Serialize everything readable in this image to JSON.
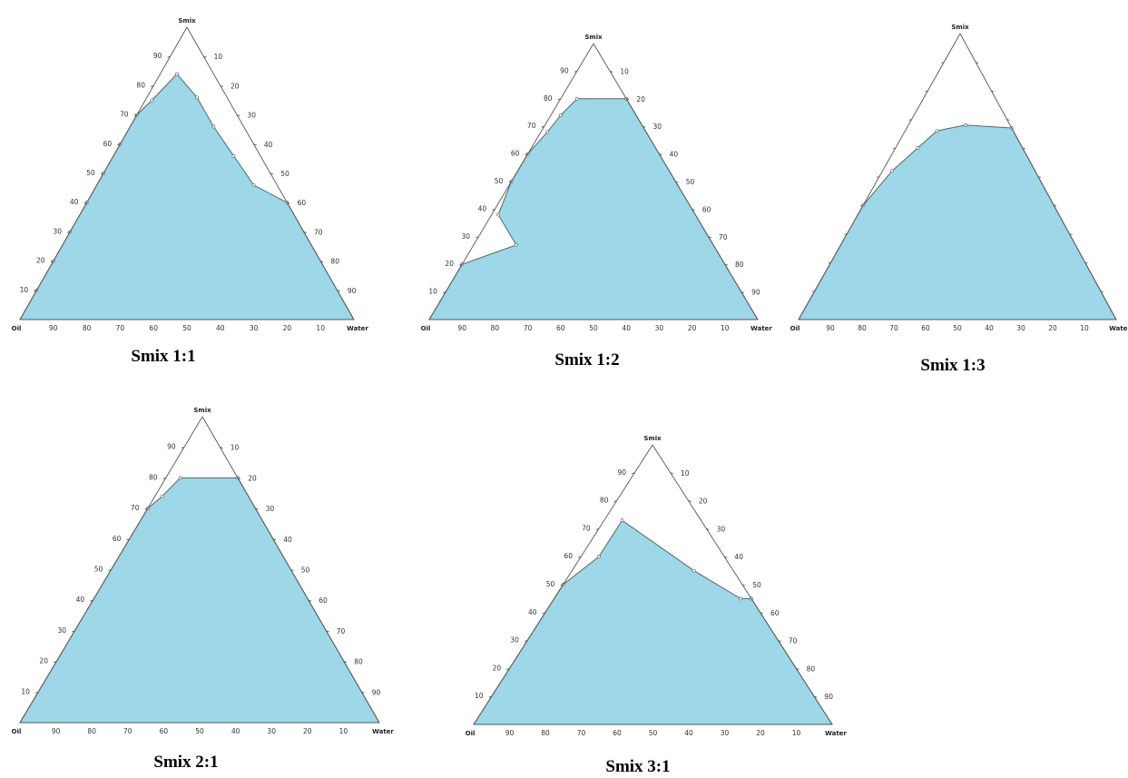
{
  "colors": {
    "region_fill": "#9dd7e8",
    "region_stroke": "#4a6b73",
    "edge": "#555555"
  },
  "chart_data": [
    {
      "type": "area",
      "chart_kind": "ternary phase diagram",
      "caption": "Smix 1:1",
      "vertices": {
        "top": "Smix",
        "bottom_left": "Oil",
        "bottom_right": "Water"
      },
      "left_edge_ticks": [
        "10",
        "20",
        "30",
        "40",
        "50",
        "60",
        "70",
        "80",
        "90"
      ],
      "right_edge_ticks": [
        "10",
        "20",
        "30",
        "40",
        "50",
        "60",
        "70",
        "80",
        "90"
      ],
      "bottom_edge_ticks": [
        "90",
        "80",
        "70",
        "60",
        "50",
        "40",
        "30",
        "20",
        "10"
      ],
      "grid": false,
      "region_points": [
        {
          "smix": 100,
          "oil": 0,
          "water": 0,
          "skip": true
        },
        {
          "smix": 0,
          "oil": 100,
          "water": 0
        },
        {
          "smix": 10,
          "oil": 90,
          "water": 0
        },
        {
          "smix": 20,
          "oil": 80,
          "water": 0
        },
        {
          "smix": 30,
          "oil": 70,
          "water": 0
        },
        {
          "smix": 40,
          "oil": 60,
          "water": 0
        },
        {
          "smix": 50,
          "oil": 50,
          "water": 0
        },
        {
          "smix": 60,
          "oil": 40,
          "water": 0
        },
        {
          "smix": 70,
          "oil": 30,
          "water": 0
        },
        {
          "smix": 75,
          "oil": 23,
          "water": 2
        },
        {
          "smix": 84,
          "oil": 11,
          "water": 5
        },
        {
          "smix": 76,
          "oil": 9,
          "water": 15
        },
        {
          "smix": 66,
          "oil": 9,
          "water": 25
        },
        {
          "smix": 56,
          "oil": 8,
          "water": 36
        },
        {
          "smix": 46,
          "oil": 7,
          "water": 47
        },
        {
          "smix": 40,
          "oil": 0,
          "water": 60
        },
        {
          "smix": 0,
          "oil": 0,
          "water": 100
        }
      ]
    },
    {
      "type": "area",
      "chart_kind": "ternary phase diagram",
      "caption": "Smix 1:2",
      "vertices": {
        "top": "Smix",
        "bottom_left": "Oil",
        "bottom_right": "Water"
      },
      "left_edge_ticks": [
        "10",
        "20",
        "30",
        "40",
        "50",
        "60",
        "70",
        "80",
        "90"
      ],
      "right_edge_ticks": [
        "10",
        "20",
        "30",
        "40",
        "50",
        "60",
        "70",
        "80",
        "90"
      ],
      "bottom_edge_ticks": [
        "90",
        "80",
        "70",
        "60",
        "50",
        "40",
        "30",
        "20",
        "10"
      ],
      "grid": false,
      "region_points": [
        {
          "smix": 0,
          "oil": 100,
          "water": 0
        },
        {
          "smix": 20,
          "oil": 80,
          "water": 0
        },
        {
          "smix": 27,
          "oil": 60,
          "water": 13
        },
        {
          "smix": 38,
          "oil": 60,
          "water": 2
        },
        {
          "smix": 50,
          "oil": 50,
          "water": 0
        },
        {
          "smix": 60,
          "oil": 40,
          "water": 0
        },
        {
          "smix": 68,
          "oil": 30,
          "water": 2
        },
        {
          "smix": 74,
          "oil": 23,
          "water": 3
        },
        {
          "smix": 80,
          "oil": 15,
          "water": 5
        },
        {
          "smix": 80,
          "oil": 0,
          "water": 20
        },
        {
          "smix": 0,
          "oil": 0,
          "water": 100
        }
      ]
    },
    {
      "type": "area",
      "chart_kind": "ternary phase diagram",
      "caption": "Smix 1:3",
      "vertices": {
        "top": "Smix",
        "bottom_left": "Oil",
        "bottom_right": "Water"
      },
      "left_edge_ticks": [],
      "right_edge_ticks": [],
      "bottom_edge_ticks": [
        "90",
        "80",
        "70",
        "60",
        "50",
        "40",
        "30",
        "20",
        "10"
      ],
      "grid": false,
      "region_points": [
        {
          "smix": 0,
          "oil": 100,
          "water": 0
        },
        {
          "smix": 40,
          "oil": 60,
          "water": 0
        },
        {
          "smix": 52,
          "oil": 45,
          "water": 3
        },
        {
          "smix": 60,
          "oil": 33,
          "water": 7
        },
        {
          "smix": 66,
          "oil": 24,
          "water": 10
        },
        {
          "smix": 68,
          "oil": 14,
          "water": 18
        },
        {
          "smix": 67,
          "oil": 0,
          "water": 33
        },
        {
          "smix": 0,
          "oil": 0,
          "water": 100
        }
      ]
    },
    {
      "type": "area",
      "chart_kind": "ternary phase diagram",
      "caption": "Smix 2:1",
      "vertices": {
        "top": "Smix",
        "bottom_left": "Oil",
        "bottom_right": "Water"
      },
      "left_edge_ticks": [
        "10",
        "20",
        "30",
        "40",
        "50",
        "60",
        "70",
        "80",
        "90"
      ],
      "right_edge_ticks": [
        "10",
        "20",
        "30",
        "40",
        "50",
        "60",
        "70",
        "80",
        "90"
      ],
      "bottom_edge_ticks": [
        "90",
        "80",
        "70",
        "60",
        "50",
        "40",
        "30",
        "20",
        "10"
      ],
      "grid": false,
      "region_points": [
        {
          "smix": 0,
          "oil": 100,
          "water": 0
        },
        {
          "smix": 70,
          "oil": 30,
          "water": 0
        },
        {
          "smix": 74,
          "oil": 24,
          "water": 2
        },
        {
          "smix": 80,
          "oil": 16,
          "water": 4
        },
        {
          "smix": 80,
          "oil": 0,
          "water": 20
        },
        {
          "smix": 0,
          "oil": 0,
          "water": 100
        }
      ]
    },
    {
      "type": "area",
      "chart_kind": "ternary phase diagram",
      "caption": "Smix 3:1",
      "vertices": {
        "top": "Smix",
        "bottom_left": "Oil",
        "bottom_right": "Water"
      },
      "left_edge_ticks": [
        "10",
        "20",
        "30",
        "40",
        "50",
        "60",
        "70",
        "80",
        "90"
      ],
      "right_edge_ticks": [
        "10",
        "20",
        "30",
        "40",
        "50",
        "60",
        "70",
        "80",
        "90"
      ],
      "bottom_edge_ticks": [
        "90",
        "80",
        "70",
        "60",
        "50",
        "40",
        "30",
        "20",
        "10"
      ],
      "grid": false,
      "region_points": [
        {
          "smix": 0,
          "oil": 100,
          "water": 0
        },
        {
          "smix": 50,
          "oil": 50,
          "water": 0
        },
        {
          "smix": 60,
          "oil": 35,
          "water": 5
        },
        {
          "smix": 73,
          "oil": 22,
          "water": 5
        },
        {
          "smix": 55,
          "oil": 11,
          "water": 34
        },
        {
          "smix": 45,
          "oil": 3,
          "water": 52
        },
        {
          "smix": 45,
          "oil": 0,
          "water": 55
        },
        {
          "smix": 0,
          "oil": 0,
          "water": 100
        }
      ]
    }
  ]
}
